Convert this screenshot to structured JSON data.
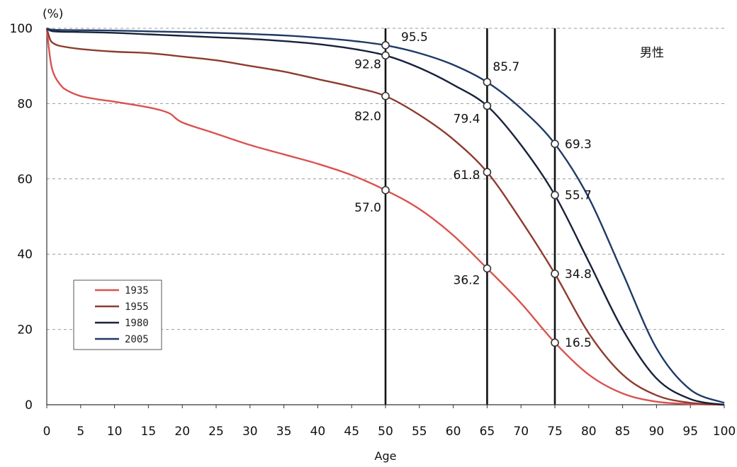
{
  "chart_data": {
    "type": "line",
    "title": "",
    "panel_label": "男性",
    "y_unit_label": "(%)",
    "xlabel": "Age",
    "ylabel": "",
    "xlim": [
      0,
      100
    ],
    "ylim": [
      0,
      100
    ],
    "x_ticks": [
      0,
      5,
      10,
      15,
      20,
      25,
      30,
      35,
      40,
      45,
      50,
      55,
      60,
      65,
      70,
      75,
      80,
      85,
      90,
      95,
      100
    ],
    "y_ticks": [
      0,
      20,
      40,
      60,
      80,
      100
    ],
    "grid": "horizontal-dashed",
    "legend_position": "bottom-left",
    "reference_lines_x": [
      50,
      65,
      75
    ],
    "series": [
      {
        "name": "1935",
        "color": "#d9534f",
        "points": [
          [
            0,
            100
          ],
          [
            0.5,
            92
          ],
          [
            1,
            88
          ],
          [
            2,
            85
          ],
          [
            3,
            83.5
          ],
          [
            5,
            82
          ],
          [
            8,
            81
          ],
          [
            10,
            80.5
          ],
          [
            15,
            79
          ],
          [
            18,
            77.5
          ],
          [
            20,
            75
          ],
          [
            25,
            72
          ],
          [
            30,
            69
          ],
          [
            35,
            66.5
          ],
          [
            40,
            64
          ],
          [
            45,
            61
          ],
          [
            50,
            57
          ],
          [
            55,
            52
          ],
          [
            60,
            45
          ],
          [
            65,
            36.2
          ],
          [
            70,
            27
          ],
          [
            75,
            16.5
          ],
          [
            80,
            8
          ],
          [
            85,
            3
          ],
          [
            90,
            0.8
          ],
          [
            95,
            0.2
          ],
          [
            100,
            0
          ]
        ]
      },
      {
        "name": "1955",
        "color": "#8e3b2e",
        "points": [
          [
            0,
            100
          ],
          [
            0.5,
            97
          ],
          [
            1,
            96
          ],
          [
            2,
            95.3
          ],
          [
            5,
            94.5
          ],
          [
            10,
            93.8
          ],
          [
            15,
            93.4
          ],
          [
            20,
            92.5
          ],
          [
            25,
            91.5
          ],
          [
            30,
            90
          ],
          [
            35,
            88.5
          ],
          [
            40,
            86.5
          ],
          [
            45,
            84.5
          ],
          [
            50,
            82
          ],
          [
            55,
            77
          ],
          [
            60,
            70.5
          ],
          [
            65,
            61.8
          ],
          [
            70,
            49
          ],
          [
            75,
            34.8
          ],
          [
            80,
            19
          ],
          [
            85,
            8
          ],
          [
            90,
            2.5
          ],
          [
            95,
            0.5
          ],
          [
            100,
            0
          ]
        ]
      },
      {
        "name": "1980",
        "color": "#17223b",
        "points": [
          [
            0,
            100
          ],
          [
            1,
            99.2
          ],
          [
            5,
            99
          ],
          [
            10,
            98.8
          ],
          [
            15,
            98.4
          ],
          [
            20,
            98
          ],
          [
            25,
            97.6
          ],
          [
            30,
            97.2
          ],
          [
            35,
            96.6
          ],
          [
            40,
            95.8
          ],
          [
            45,
            94.6
          ],
          [
            50,
            92.8
          ],
          [
            55,
            89.5
          ],
          [
            60,
            85
          ],
          [
            65,
            79.4
          ],
          [
            70,
            69
          ],
          [
            75,
            55.7
          ],
          [
            80,
            38
          ],
          [
            85,
            20
          ],
          [
            90,
            7
          ],
          [
            95,
            1.5
          ],
          [
            100,
            0
          ]
        ]
      },
      {
        "name": "2005",
        "color": "#1f3a66",
        "points": [
          [
            0,
            100
          ],
          [
            1,
            99.6
          ],
          [
            5,
            99.5
          ],
          [
            10,
            99.4
          ],
          [
            15,
            99.2
          ],
          [
            20,
            99
          ],
          [
            25,
            98.8
          ],
          [
            30,
            98.5
          ],
          [
            35,
            98.1
          ],
          [
            40,
            97.5
          ],
          [
            45,
            96.7
          ],
          [
            50,
            95.5
          ],
          [
            55,
            93.4
          ],
          [
            60,
            90.3
          ],
          [
            65,
            85.7
          ],
          [
            70,
            78.7
          ],
          [
            75,
            69.3
          ],
          [
            80,
            55
          ],
          [
            85,
            35
          ],
          [
            90,
            15
          ],
          [
            95,
            4
          ],
          [
            100,
            0.5
          ]
        ]
      }
    ],
    "annotations": [
      {
        "x": 50,
        "y": 95.5,
        "text": "95.5"
      },
      {
        "x": 50,
        "y": 92.8,
        "text": "92.8"
      },
      {
        "x": 50,
        "y": 82.0,
        "text": "82.0"
      },
      {
        "x": 50,
        "y": 57.0,
        "text": "57.0"
      },
      {
        "x": 65,
        "y": 85.7,
        "text": "85.7"
      },
      {
        "x": 65,
        "y": 79.4,
        "text": "79.4"
      },
      {
        "x": 65,
        "y": 61.8,
        "text": "61.8"
      },
      {
        "x": 65,
        "y": 36.2,
        "text": "36.2"
      },
      {
        "x": 75,
        "y": 69.3,
        "text": "69.3"
      },
      {
        "x": 75,
        "y": 55.7,
        "text": "55.7"
      },
      {
        "x": 75,
        "y": 34.8,
        "text": "34.8"
      },
      {
        "x": 75,
        "y": 16.5,
        "text": "16.5"
      }
    ]
  }
}
